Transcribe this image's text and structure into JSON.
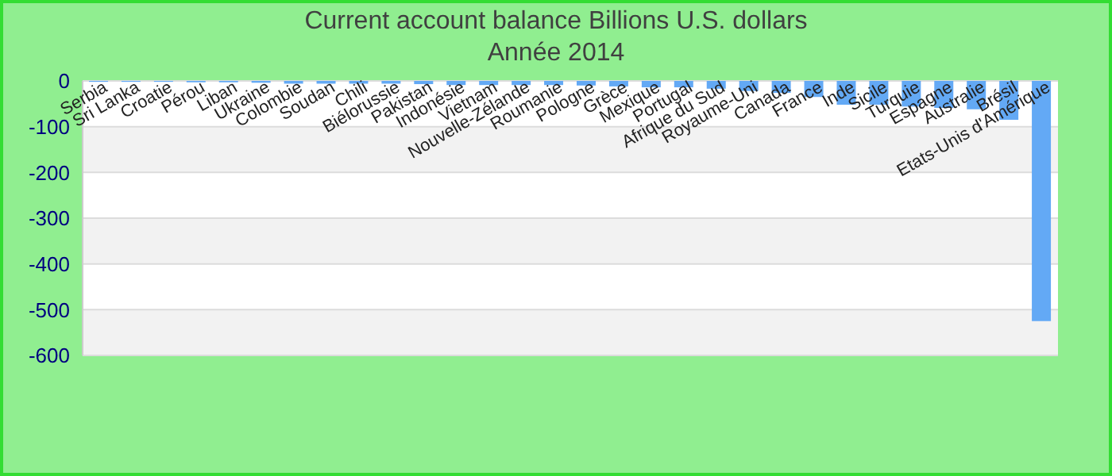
{
  "chart_data": {
    "type": "bar",
    "title": "Current account balance Billions U.S. dollars",
    "subtitle": "Année 2014",
    "categories": [
      "Serbia",
      "Sri Lanka",
      "Croatie",
      "Pérou",
      "Liban",
      "Ukraine",
      "Colombie",
      "Soudan",
      "Chili",
      "Biélorussie",
      "Pakistan",
      "Indonésie",
      "Vietnam",
      "Nouvelle-Zélande",
      "Roumanie",
      "Pologne",
      "Grèce",
      "Mexique",
      "Portugal",
      "Afrique du Sud",
      "Royaume-Uni",
      "Canada",
      "France",
      "Inde",
      "Sicile",
      "Turquie",
      "Espagne",
      "Australie",
      "Brésil",
      "Etats-Unis d'Amérique"
    ],
    "values": [
      -2,
      -2,
      -2,
      -3,
      -3,
      -4,
      -6,
      -6,
      -6,
      -6,
      -7,
      -9,
      -9,
      -9,
      -9,
      -10,
      -12,
      -14,
      -14,
      -17,
      -22,
      -26,
      -35,
      -52,
      -52,
      -56,
      -59,
      -62,
      -85,
      -525
    ],
    "color": "#63a9f5",
    "ylim": [
      -600,
      0
    ],
    "yticks": [
      -600,
      -500,
      -400,
      -300,
      -200,
      -100,
      0
    ],
    "grid": "y",
    "legend": false
  }
}
